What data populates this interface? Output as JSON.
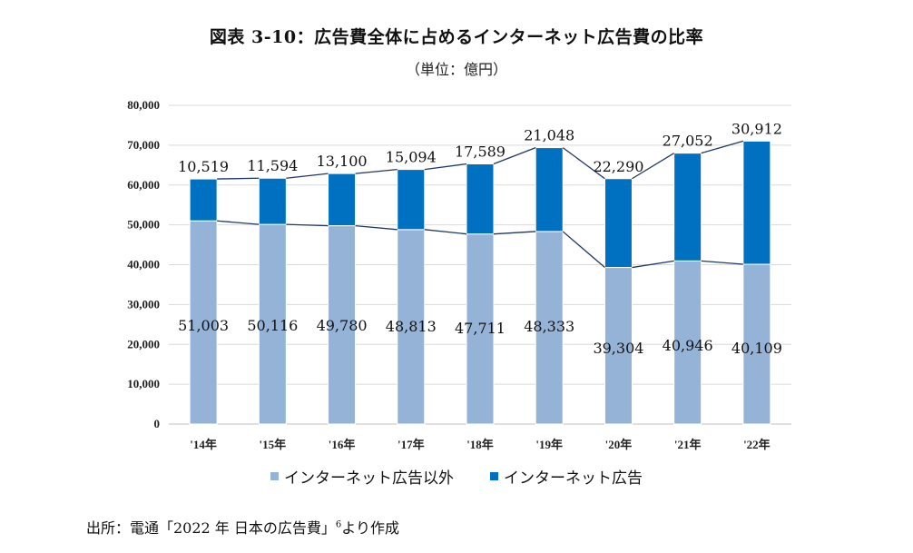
{
  "title": "図表 3-10：広告費全体に占めるインターネット広告費の比率",
  "subtitle": "（単位：億円）",
  "source": {
    "prefix": "出所：電通「2022 年 日本の広告費」",
    "footnote": "6",
    "suffix": "より作成"
  },
  "colors": {
    "non_internet": "#95b3d7",
    "internet": "#0070c0",
    "connector": "#1f3864",
    "grid": "#d9d9d9"
  },
  "chart_data": {
    "type": "bar",
    "stacked": true,
    "title": "図表 3-10：広告費全体に占めるインターネット広告費の比率",
    "subtitle": "（単位：億円）",
    "xlabel": "",
    "ylabel": "",
    "categories": [
      "'14年",
      "'15年",
      "'16年",
      "'17年",
      "'18年",
      "'19年",
      "'20年",
      "'21年",
      "'22年"
    ],
    "series": [
      {
        "name": "インターネット広告以外",
        "values": [
          51003,
          50116,
          49780,
          48813,
          47711,
          48333,
          39304,
          40946,
          40109
        ]
      },
      {
        "name": "インターネット広告",
        "values": [
          10519,
          11594,
          13100,
          15094,
          17589,
          21048,
          22290,
          27052,
          30912
        ]
      }
    ],
    "ylim": [
      0,
      80000
    ],
    "yticks": [
      "0",
      "10,000",
      "20,000",
      "30,000",
      "40,000",
      "50,000",
      "60,000",
      "70,000",
      "80,000"
    ],
    "ytick_values": [
      0,
      10000,
      20000,
      30000,
      40000,
      50000,
      60000,
      70000,
      80000
    ],
    "grid": true,
    "series_lines": true,
    "legend_position": "bottom",
    "legend": [
      "インターネット広告以外",
      "インターネット広告"
    ]
  }
}
